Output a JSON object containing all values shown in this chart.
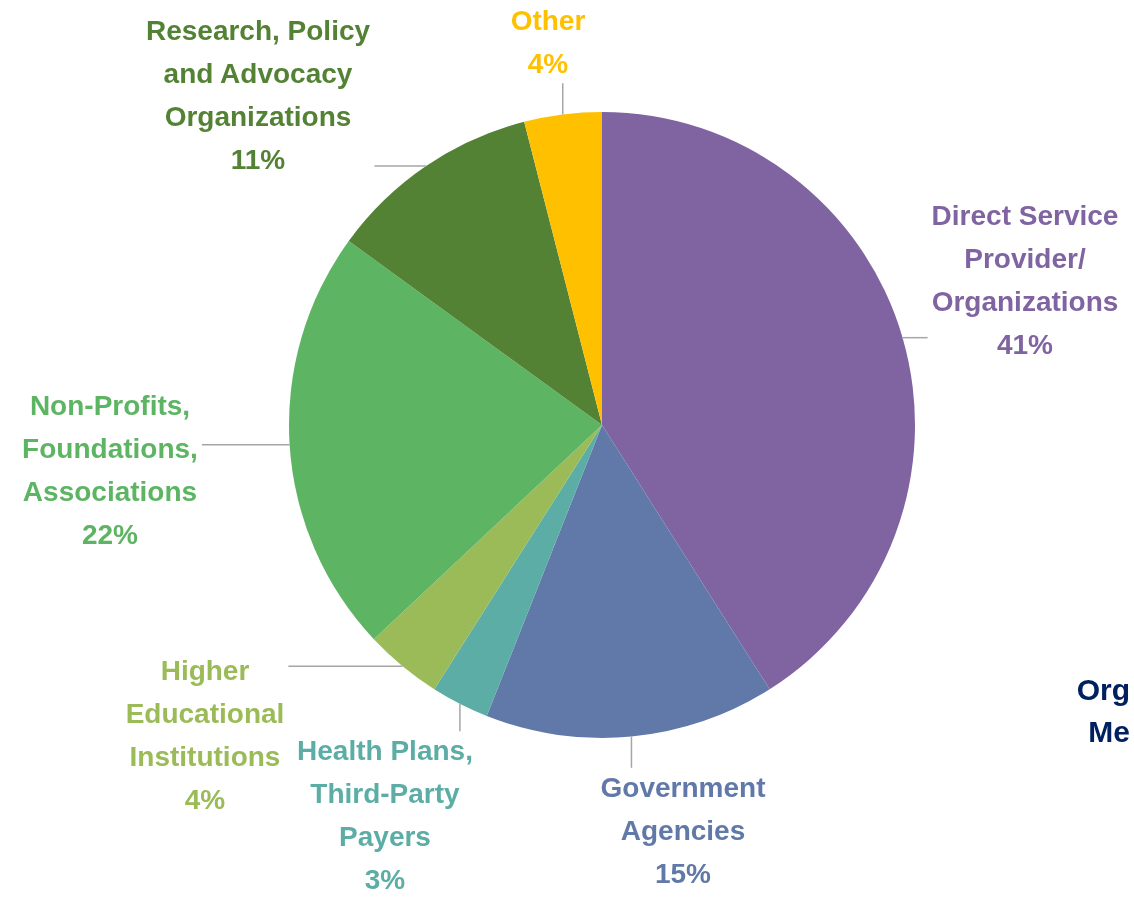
{
  "chart_data": {
    "type": "pie",
    "categories": [
      "Direct Service Provider/ Organizations",
      "Government Agencies",
      "Health Plans, Third-Party Payers",
      "Higher Educational Institutions",
      "Non-Profits, Foundations, Associations",
      "Research, Policy and Advocacy Organizations",
      "Other"
    ],
    "values": [
      41,
      15,
      3,
      4,
      22,
      11,
      4
    ],
    "colors": [
      "#8064a2",
      "#6079a8",
      "#5cada5",
      "#9bbb59",
      "#5db463",
      "#548235",
      "#ffc000"
    ],
    "value_labels": [
      "41%",
      "15%",
      "3%",
      "4%",
      "22%",
      "11%",
      "4%"
    ],
    "legend": false,
    "annotations": [
      "Org",
      "Me"
    ]
  }
}
